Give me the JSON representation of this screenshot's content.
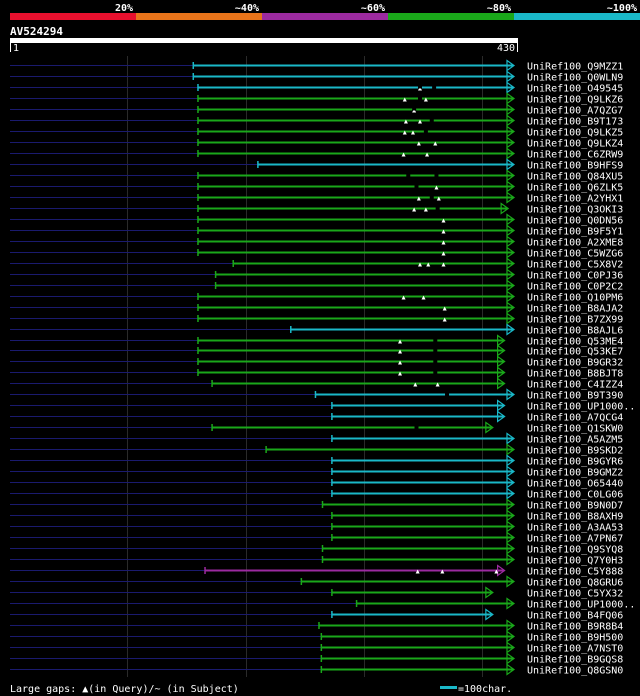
{
  "chart_data": {
    "type": "blast-alignment-overview",
    "query": {
      "name": "AV524294",
      "start": 1,
      "end": 430
    },
    "identity_legend": [
      {
        "label": "20%",
        "color": "#e8102e"
      },
      {
        "label": "~40%",
        "color": "#e8741a"
      },
      {
        "label": "~60%",
        "color": "#9c2aa0"
      },
      {
        "label": "~80%",
        "color": "#1aa81a"
      },
      {
        "label": "~100%",
        "color": "#1ab8c8"
      }
    ],
    "footer": {
      "gaps_text": "Large gaps: ▲(in Query)/~ (in Subject)",
      "scale_text": "=100char."
    },
    "hits": [
      {
        "name": "UniRef100_Q9MZZ1",
        "start": 157,
        "end": 430,
        "c": 4,
        "g": [],
        "s": []
      },
      {
        "name": "UniRef100_Q0WLN9",
        "start": 157,
        "end": 430,
        "c": 4,
        "g": [],
        "s": []
      },
      {
        "name": "UniRef100_O49545",
        "start": 161,
        "end": 430,
        "c": 4,
        "g": [
          350
        ],
        "s": [
          350,
          362
        ]
      },
      {
        "name": "UniRef100_Q9LKZ6",
        "start": 161,
        "end": 430,
        "c": 3,
        "g": [
          337,
          355
        ],
        "s": [
          350
        ]
      },
      {
        "name": "UniRef100_A7QZG7",
        "start": 161,
        "end": 430,
        "c": 3,
        "g": [
          345
        ],
        "s": [
          345
        ]
      },
      {
        "name": "UniRef100_B9T173",
        "start": 161,
        "end": 430,
        "c": 3,
        "g": [
          338,
          350
        ],
        "s": [
          360
        ]
      },
      {
        "name": "UniRef100_Q9LKZ5",
        "start": 161,
        "end": 430,
        "c": 3,
        "g": [
          337,
          344
        ],
        "s": [
          355
        ]
      },
      {
        "name": "UniRef100_Q9LKZ4",
        "start": 161,
        "end": 430,
        "c": 3,
        "g": [
          349,
          363
        ],
        "s": []
      },
      {
        "name": "UniRef100_C6ZRW9",
        "start": 161,
        "end": 430,
        "c": 3,
        "g": [
          336,
          356
        ],
        "s": []
      },
      {
        "name": "UniRef100_B9HFS9",
        "start": 212,
        "end": 430,
        "c": 4,
        "g": [],
        "s": []
      },
      {
        "name": "UniRef100_Q84XU5",
        "start": 161,
        "end": 430,
        "c": 3,
        "g": [],
        "s": [
          340,
          364
        ]
      },
      {
        "name": "UniRef100_Q6ZLK5",
        "start": 161,
        "end": 430,
        "c": 3,
        "g": [
          364
        ],
        "s": [
          347
        ]
      },
      {
        "name": "UniRef100_A2YHX1",
        "start": 161,
        "end": 430,
        "c": 3,
        "g": [
          349,
          366
        ],
        "s": [
          360
        ]
      },
      {
        "name": "UniRef100_Q3OKI3",
        "start": 161,
        "end": 425,
        "c": 3,
        "g": [
          345,
          355
        ],
        "s": [
          365
        ]
      },
      {
        "name": "UniRef100_Q0DN56",
        "start": 161,
        "end": 430,
        "c": 3,
        "g": [
          370
        ],
        "s": []
      },
      {
        "name": "UniRef100_B9F5Y1",
        "start": 161,
        "end": 430,
        "c": 3,
        "g": [
          370
        ],
        "s": []
      },
      {
        "name": "UniRef100_A2XME8",
        "start": 161,
        "end": 430,
        "c": 3,
        "g": [
          370
        ],
        "s": []
      },
      {
        "name": "UniRef100_C5WZG6",
        "start": 161,
        "end": 430,
        "c": 3,
        "g": [
          370
        ],
        "s": []
      },
      {
        "name": "UniRef100_C5X8V2",
        "start": 191,
        "end": 430,
        "c": 3,
        "g": [
          350,
          357,
          370
        ],
        "s": []
      },
      {
        "name": "UniRef100_C0PJ36",
        "start": 176,
        "end": 430,
        "c": 3,
        "g": [],
        "s": []
      },
      {
        "name": "UniRef100_C0P2C2",
        "start": 176,
        "end": 430,
        "c": 3,
        "g": [],
        "s": []
      },
      {
        "name": "UniRef100_Q10PM6",
        "start": 161,
        "end": 430,
        "c": 3,
        "g": [
          336,
          353
        ],
        "s": []
      },
      {
        "name": "UniRef100_B8AJA2",
        "start": 161,
        "end": 430,
        "c": 3,
        "g": [
          371
        ],
        "s": []
      },
      {
        "name": "UniRef100_B7ZX99",
        "start": 161,
        "end": 430,
        "c": 3,
        "g": [
          371
        ],
        "s": []
      },
      {
        "name": "UniRef100_B8AJL6",
        "start": 240,
        "end": 430,
        "c": 4,
        "g": [],
        "s": []
      },
      {
        "name": "UniRef100_Q53ME4",
        "start": 161,
        "end": 422,
        "c": 3,
        "g": [
          333
        ],
        "s": [
          363
        ]
      },
      {
        "name": "UniRef100_Q53KE7",
        "start": 161,
        "end": 422,
        "c": 3,
        "g": [
          333
        ],
        "s": [
          363
        ]
      },
      {
        "name": "UniRef100_B9GR32",
        "start": 161,
        "end": 422,
        "c": 3,
        "g": [
          333
        ],
        "s": [
          363
        ]
      },
      {
        "name": "UniRef100_B8BJT8",
        "start": 161,
        "end": 422,
        "c": 3,
        "g": [
          333
        ],
        "s": [
          363
        ]
      },
      {
        "name": "UniRef100_C4IZZ4",
        "start": 173,
        "end": 422,
        "c": 3,
        "g": [
          346,
          365
        ],
        "s": []
      },
      {
        "name": "UniRef100_B9T390",
        "start": 261,
        "end": 430,
        "c": 4,
        "g": [],
        "s": [
          373
        ]
      },
      {
        "name": "UniRef100_UP1000..",
        "start": 275,
        "end": 422,
        "c": 4,
        "g": [],
        "s": []
      },
      {
        "name": "UniRef100_A7QCG4",
        "start": 275,
        "end": 422,
        "c": 4,
        "g": [],
        "s": []
      },
      {
        "name": "UniRef100_Q1SKW0",
        "start": 173,
        "end": 412,
        "c": 3,
        "g": [],
        "s": [
          347
        ]
      },
      {
        "name": "UniRef100_A5AZM5",
        "start": 275,
        "end": 430,
        "c": 4,
        "g": [],
        "s": []
      },
      {
        "name": "UniRef100_B9SKD2",
        "start": 219,
        "end": 430,
        "c": 3,
        "g": [],
        "s": []
      },
      {
        "name": "UniRef100_B9GYR6",
        "start": 275,
        "end": 430,
        "c": 4,
        "g": [],
        "s": []
      },
      {
        "name": "UniRef100_B9GMZ2",
        "start": 275,
        "end": 430,
        "c": 4,
        "g": [],
        "s": []
      },
      {
        "name": "UniRef100_O65440",
        "start": 275,
        "end": 430,
        "c": 4,
        "g": [],
        "s": []
      },
      {
        "name": "UniRef100_C0LG06",
        "start": 275,
        "end": 430,
        "c": 4,
        "g": [],
        "s": []
      },
      {
        "name": "UniRef100_B9N0D7",
        "start": 267,
        "end": 430,
        "c": 3,
        "g": [],
        "s": []
      },
      {
        "name": "UniRef100_B8AXH9",
        "start": 275,
        "end": 430,
        "c": 3,
        "g": [],
        "s": []
      },
      {
        "name": "UniRef100_A3AA53",
        "start": 275,
        "end": 430,
        "c": 3,
        "g": [],
        "s": []
      },
      {
        "name": "UniRef100_A7PN67",
        "start": 275,
        "end": 430,
        "c": 3,
        "g": [],
        "s": []
      },
      {
        "name": "UniRef100_Q9SYQ8",
        "start": 267,
        "end": 430,
        "c": 3,
        "g": [],
        "s": []
      },
      {
        "name": "UniRef100_Q7Y0H3",
        "start": 267,
        "end": 430,
        "c": 3,
        "g": [],
        "s": []
      },
      {
        "name": "UniRef100_C5Y888",
        "start": 167,
        "end": 422,
        "c": 2,
        "g": [
          348,
          369,
          415
        ],
        "s": []
      },
      {
        "name": "UniRef100_Q8GRU6",
        "start": 249,
        "end": 430,
        "c": 3,
        "g": [],
        "s": []
      },
      {
        "name": "UniRef100_C5YX32",
        "start": 275,
        "end": 412,
        "c": 3,
        "g": [],
        "s": []
      },
      {
        "name": "UniRef100_UP1000..",
        "start": 296,
        "end": 430,
        "c": 3,
        "g": [],
        "s": []
      },
      {
        "name": "UniRef100_B4FQ06",
        "start": 275,
        "end": 412,
        "c": 4,
        "g": [],
        "s": []
      },
      {
        "name": "UniRef100_B9R8B4",
        "start": 264,
        "end": 430,
        "c": 3,
        "g": [],
        "s": []
      },
      {
        "name": "UniRef100_B9H500",
        "start": 266,
        "end": 430,
        "c": 3,
        "g": [],
        "s": []
      },
      {
        "name": "UniRef100_A7NST0",
        "start": 266,
        "end": 430,
        "c": 3,
        "g": [],
        "s": []
      },
      {
        "name": "UniRef100_B9GQS8",
        "start": 266,
        "end": 430,
        "c": 3,
        "g": [],
        "s": []
      },
      {
        "name": "UniRef100_Q8GSN0",
        "start": 266,
        "end": 430,
        "c": 3,
        "g": [],
        "s": []
      }
    ]
  }
}
